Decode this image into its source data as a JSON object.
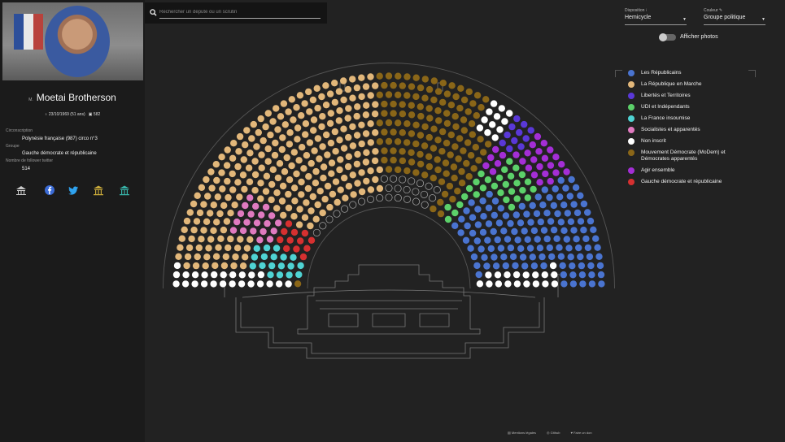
{
  "member": {
    "civility": "M.",
    "name": "Moetai Brotherson",
    "birth": "23/10/1969 (51 ans)",
    "seat": "582",
    "constituency_label": "Circonscription",
    "constituency": "Polynésie française (987) circo n°3",
    "group_label": "Groupe",
    "group": "Gauche démocrate et républicaine",
    "followers_label": "Nombre de follower twitter",
    "followers": "514"
  },
  "search": {
    "placeholder": "Rechercher un député ou un scrutin"
  },
  "controls": {
    "disposition_label": "Disposition",
    "disposition_value": "Hemicycle",
    "color_label": "Couleur",
    "color_value": "Groupe politique",
    "photos_label": "Afficher photos"
  },
  "legend": [
    {
      "label": "Les Républicains",
      "color": "#4a74d0"
    },
    {
      "label": "La République en Marche",
      "color": "#e2b77a"
    },
    {
      "label": "Libertés et Territoires",
      "color": "#5a38d8"
    },
    {
      "label": "UDI et Indépendants",
      "color": "#5cd16a"
    },
    {
      "label": "La France insoumise",
      "color": "#4fd3d3"
    },
    {
      "label": "Socialistes et apparentés",
      "color": "#e07ac0"
    },
    {
      "label": "Non inscrit",
      "color": "#ffffff"
    },
    {
      "label": "Mouvement Démocrate (MoDem) et Démocrates apparentés",
      "color": "#8a6618"
    },
    {
      "label": "Agir ensemble",
      "color": "#a42ed6"
    },
    {
      "label": "Gauche démocrate et républicaine",
      "color": "#d63030"
    }
  ],
  "footer": {
    "legal": "Mentions légales",
    "github": "Github",
    "donate": "Faire un don"
  }
}
